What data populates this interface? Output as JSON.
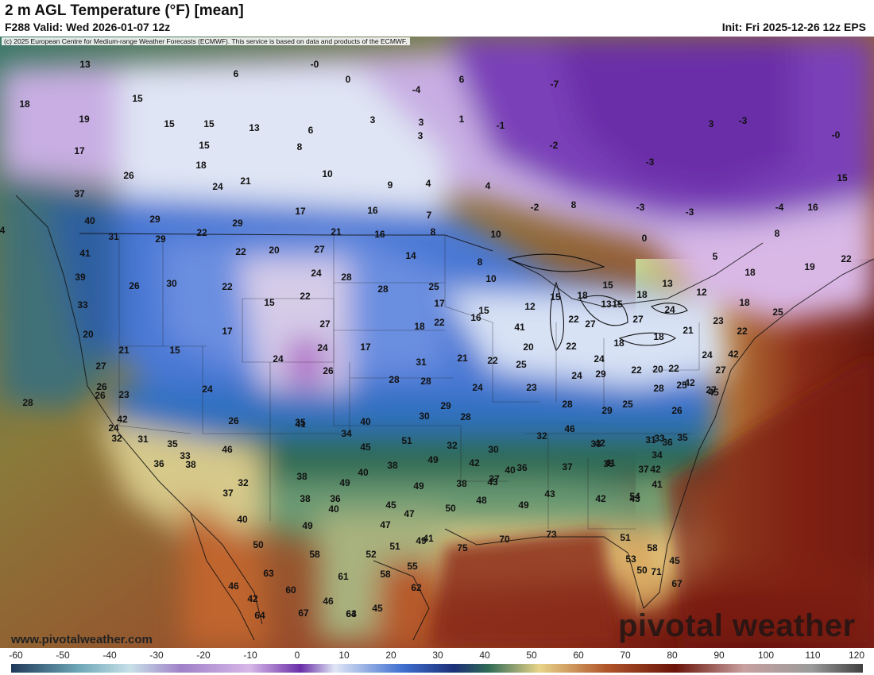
{
  "header": {
    "title": "2 m AGL Temperature (°F) [mean]",
    "valid": "F288 Valid: Wed 2026-01-07 12z",
    "init": "Init: Fri 2025-12-26 12z EPS"
  },
  "credit": "(c) 2025 European Centre for Medium-range Weather Forecasts (ECMWF). This service is based on data and products of the ECMWF.",
  "site_url": "www.pivotalweather.com",
  "watermark": "pivotal weather",
  "colorbar": {
    "ticks": [
      "-60",
      "-50",
      "-40",
      "-30",
      "-20",
      "-10",
      "0",
      "10",
      "20",
      "30",
      "40",
      "50",
      "60",
      "70",
      "80",
      "90",
      "100",
      "110",
      "120"
    ]
  },
  "colors": {
    "very_cold": "#6a2fa8",
    "cold": "#c9a3df",
    "freezing": "#dce6f5",
    "cool": "#3f6fd0",
    "mild": "#2f6a55",
    "warm": "#e8d48a",
    "hot": "#b0542a",
    "very_hot": "#7a1e12"
  },
  "map_values": [
    "13",
    "6",
    "-0",
    "0",
    "6",
    "-4",
    "-7",
    "18",
    "15",
    "3",
    "1",
    "19",
    "15",
    "15",
    "13",
    "6",
    "3",
    "-1",
    "3",
    "-3",
    "-0",
    "17",
    "15",
    "8",
    "3",
    "-2",
    "-3",
    "26",
    "18",
    "21",
    "10",
    "9",
    "4",
    "4",
    "-3",
    "24",
    "37",
    "8",
    "-3",
    "-4",
    "15",
    "40",
    "29",
    "17",
    "16",
    "7",
    "-2",
    "16",
    "22",
    "29",
    "4",
    "21",
    "16",
    "8",
    "10",
    "0",
    "8",
    "31",
    "29",
    "22",
    "20",
    "27",
    "14",
    "5",
    "41",
    "28",
    "24",
    "28",
    "8",
    "10",
    "18",
    "19",
    "22",
    "39",
    "26",
    "30",
    "22",
    "15",
    "22",
    "25",
    "15",
    "12",
    "15",
    "18",
    "13",
    "13",
    "33",
    "17",
    "27",
    "17",
    "15",
    "15",
    "18",
    "16",
    "22",
    "24",
    "12",
    "41",
    "18",
    "25",
    "20",
    "27",
    "27",
    "21",
    "15",
    "24",
    "17",
    "18",
    "22",
    "22",
    "20",
    "18",
    "18",
    "21",
    "23",
    "22",
    "27",
    "27",
    "24",
    "26",
    "21",
    "22",
    "24",
    "24",
    "22",
    "20",
    "25",
    "31",
    "25",
    "42",
    "26",
    "28",
    "29",
    "28",
    "22",
    "24",
    "42",
    "24",
    "27",
    "26",
    "23",
    "28",
    "28",
    "24",
    "23",
    "28",
    "29",
    "45",
    "24",
    "26",
    "35",
    "30",
    "28",
    "29",
    "25",
    "42",
    "40",
    "26",
    "31",
    "32",
    "35",
    "32",
    "34",
    "41",
    "33",
    "46",
    "31",
    "45",
    "46",
    "51",
    "32",
    "33",
    "30",
    "33",
    "36",
    "38",
    "49",
    "49",
    "37",
    "41",
    "34",
    "32",
    "35",
    "37",
    "36",
    "38",
    "36",
    "37",
    "42",
    "42",
    "40",
    "35",
    "38",
    "40",
    "43",
    "42",
    "41",
    "37",
    "38",
    "36",
    "49",
    "38",
    "43",
    "42",
    "40",
    "47",
    "45",
    "48",
    "50",
    "49",
    "40",
    "47",
    "49",
    "43",
    "54",
    "52",
    "41",
    "51",
    "58",
    "58",
    "49",
    "51",
    "50",
    "53",
    "58",
    "61",
    "50",
    "55",
    "63",
    "60",
    "62",
    "71",
    "46",
    "42",
    "45",
    "67",
    "45",
    "46",
    "63",
    "67",
    "64",
    "64",
    "75",
    "70",
    "73"
  ]
}
